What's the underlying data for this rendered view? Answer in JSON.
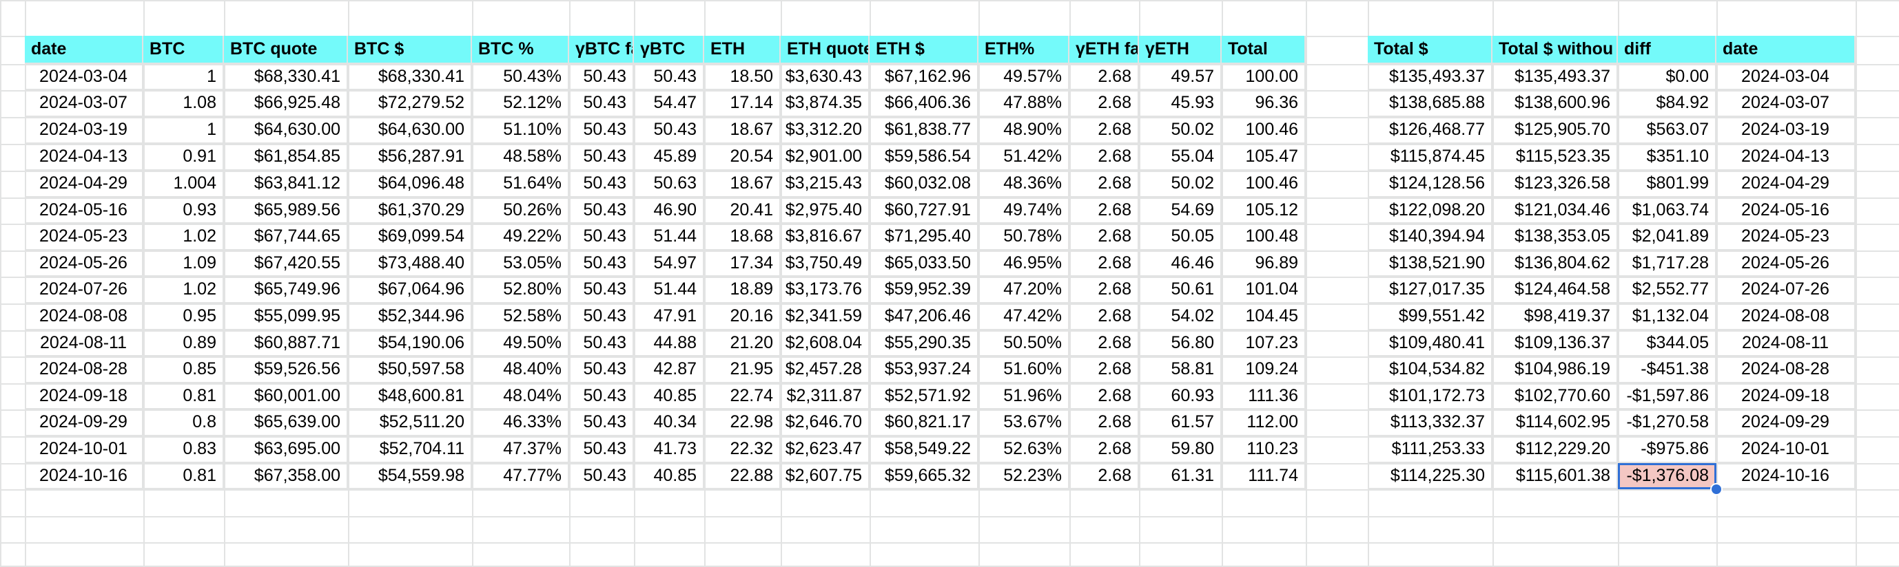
{
  "sheet": {
    "left_table": {
      "headers": [
        "date",
        "BTC",
        "BTC quote",
        "BTC $",
        "BTC %",
        "γBTC fa",
        "γBTC",
        "ETH",
        "ETH quote",
        "ETH $",
        "ETH%",
        "γETH fa",
        "γETH",
        "Total"
      ],
      "rows": [
        [
          "2024-03-04",
          "1",
          "$68,330.41",
          "$68,330.41",
          "50.43%",
          "50.43",
          "50.43",
          "18.50",
          "$3,630.43",
          "$67,162.96",
          "49.57%",
          "2.68",
          "49.57",
          "100.00"
        ],
        [
          "2024-03-07",
          "1.08",
          "$66,925.48",
          "$72,279.52",
          "52.12%",
          "50.43",
          "54.47",
          "17.14",
          "$3,874.35",
          "$66,406.36",
          "47.88%",
          "2.68",
          "45.93",
          "96.36"
        ],
        [
          "2024-03-19",
          "1",
          "$64,630.00",
          "$64,630.00",
          "51.10%",
          "50.43",
          "50.43",
          "18.67",
          "$3,312.20",
          "$61,838.77",
          "48.90%",
          "2.68",
          "50.02",
          "100.46"
        ],
        [
          "2024-04-13",
          "0.91",
          "$61,854.85",
          "$56,287.91",
          "48.58%",
          "50.43",
          "45.89",
          "20.54",
          "$2,901.00",
          "$59,586.54",
          "51.42%",
          "2.68",
          "55.04",
          "105.47"
        ],
        [
          "2024-04-29",
          "1.004",
          "$63,841.12",
          "$64,096.48",
          "51.64%",
          "50.43",
          "50.63",
          "18.67",
          "$3,215.43",
          "$60,032.08",
          "48.36%",
          "2.68",
          "50.02",
          "100.46"
        ],
        [
          "2024-05-16",
          "0.93",
          "$65,989.56",
          "$61,370.29",
          "50.26%",
          "50.43",
          "46.90",
          "20.41",
          "$2,975.40",
          "$60,727.91",
          "49.74%",
          "2.68",
          "54.69",
          "105.12"
        ],
        [
          "2024-05-23",
          "1.02",
          "$67,744.65",
          "$69,099.54",
          "49.22%",
          "50.43",
          "51.44",
          "18.68",
          "$3,816.67",
          "$71,295.40",
          "50.78%",
          "2.68",
          "50.05",
          "100.48"
        ],
        [
          "2024-05-26",
          "1.09",
          "$67,420.55",
          "$73,488.40",
          "53.05%",
          "50.43",
          "54.97",
          "17.34",
          "$3,750.49",
          "$65,033.50",
          "46.95%",
          "2.68",
          "46.46",
          "96.89"
        ],
        [
          "2024-07-26",
          "1.02",
          "$65,749.96",
          "$67,064.96",
          "52.80%",
          "50.43",
          "51.44",
          "18.89",
          "$3,173.76",
          "$59,952.39",
          "47.20%",
          "2.68",
          "50.61",
          "101.04"
        ],
        [
          "2024-08-08",
          "0.95",
          "$55,099.95",
          "$52,344.96",
          "52.58%",
          "50.43",
          "47.91",
          "20.16",
          "$2,341.59",
          "$47,206.46",
          "47.42%",
          "2.68",
          "54.02",
          "104.45"
        ],
        [
          "2024-08-11",
          "0.89",
          "$60,887.71",
          "$54,190.06",
          "49.50%",
          "50.43",
          "44.88",
          "21.20",
          "$2,608.04",
          "$55,290.35",
          "50.50%",
          "2.68",
          "56.80",
          "107.23"
        ],
        [
          "2024-08-28",
          "0.85",
          "$59,526.56",
          "$50,597.58",
          "48.40%",
          "50.43",
          "42.87",
          "21.95",
          "$2,457.28",
          "$53,937.24",
          "51.60%",
          "2.68",
          "58.81",
          "109.24"
        ],
        [
          "2024-09-18",
          "0.81",
          "$60,001.00",
          "$48,600.81",
          "48.04%",
          "50.43",
          "40.85",
          "22.74",
          "$2,311.87",
          "$52,571.92",
          "51.96%",
          "2.68",
          "60.93",
          "111.36"
        ],
        [
          "2024-09-29",
          "0.8",
          "$65,639.00",
          "$52,511.20",
          "46.33%",
          "50.43",
          "40.34",
          "22.98",
          "$2,646.70",
          "$60,821.17",
          "53.67%",
          "2.68",
          "61.57",
          "112.00"
        ],
        [
          "2024-10-01",
          "0.83",
          "$63,695.00",
          "$52,704.11",
          "47.37%",
          "50.43",
          "41.73",
          "22.32",
          "$2,623.47",
          "$58,549.22",
          "52.63%",
          "2.68",
          "59.80",
          "110.23"
        ],
        [
          "2024-10-16",
          "0.81",
          "$67,358.00",
          "$54,559.98",
          "47.77%",
          "50.43",
          "40.85",
          "22.88",
          "$2,607.75",
          "$59,665.32",
          "52.23%",
          "2.68",
          "61.31",
          "111.74"
        ]
      ]
    },
    "right_table": {
      "headers": [
        "Total $",
        "Total $ withou",
        "diff",
        "date"
      ],
      "rows": [
        [
          "$135,493.37",
          "$135,493.37",
          "$0.00",
          "2024-03-04"
        ],
        [
          "$138,685.88",
          "$138,600.96",
          "$84.92",
          "2024-03-07"
        ],
        [
          "$126,468.77",
          "$125,905.70",
          "$563.07",
          "2024-03-19"
        ],
        [
          "$115,874.45",
          "$115,523.35",
          "$351.10",
          "2024-04-13"
        ],
        [
          "$124,128.56",
          "$123,326.58",
          "$801.99",
          "2024-04-29"
        ],
        [
          "$122,098.20",
          "$121,034.46",
          "$1,063.74",
          "2024-05-16"
        ],
        [
          "$140,394.94",
          "$138,353.05",
          "$2,041.89",
          "2024-05-23"
        ],
        [
          "$138,521.90",
          "$136,804.62",
          "$1,717.28",
          "2024-05-26"
        ],
        [
          "$127,017.35",
          "$124,464.58",
          "$2,552.77",
          "2024-07-26"
        ],
        [
          "$99,551.42",
          "$98,419.37",
          "$1,132.04",
          "2024-08-08"
        ],
        [
          "$109,480.41",
          "$109,136.37",
          "$344.05",
          "2024-08-11"
        ],
        [
          "$104,534.82",
          "$104,986.19",
          "-$451.38",
          "2024-08-28"
        ],
        [
          "$101,172.73",
          "$102,770.60",
          "-$1,597.86",
          "2024-09-18"
        ],
        [
          "$113,332.37",
          "$114,602.95",
          "-$1,270.58",
          "2024-09-29"
        ],
        [
          "$111,253.33",
          "$112,229.20",
          "-$975.86",
          "2024-10-01"
        ],
        [
          "$114,225.30",
          "$115,601.38",
          "-$1,376.08",
          "2024-10-16"
        ]
      ]
    },
    "colors": {
      "header_fill": "#74fafa",
      "selected_fill": "#f4c7c3",
      "selection_border": "#2f6fd6",
      "gridline": "#e2e3e3"
    },
    "selected_cell": {
      "table": "right",
      "row": 15,
      "col": 2
    }
  }
}
